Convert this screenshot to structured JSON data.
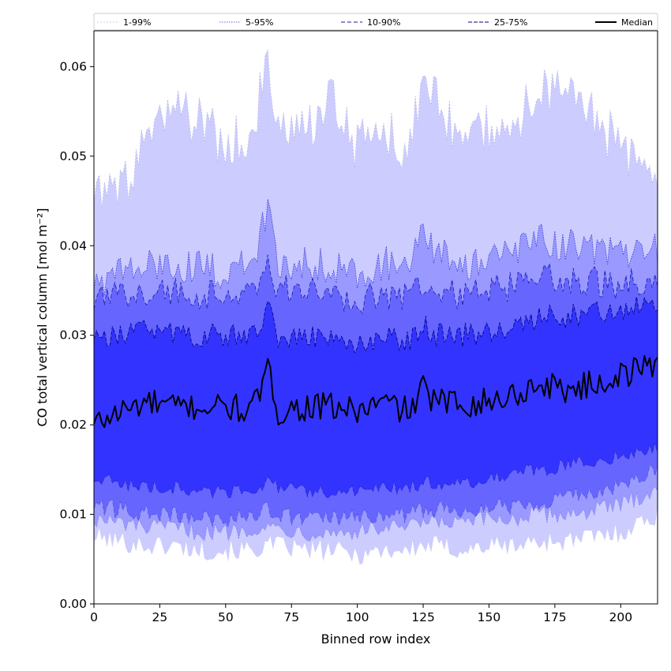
{
  "chart_data": {
    "type": "area",
    "title": "",
    "xlabel": "Binned row index",
    "ylabel": "CO total vertical column [mol m⁻²]",
    "xlim": [
      0,
      214
    ],
    "ylim": [
      0,
      0.064
    ],
    "xticks": [
      "0",
      "25",
      "50",
      "75",
      "100",
      "125",
      "150",
      "175",
      "200"
    ],
    "xtick_values": [
      0,
      25,
      50,
      75,
      100,
      125,
      150,
      175,
      200
    ],
    "yticks": [
      "0.00",
      "0.01",
      "0.02",
      "0.03",
      "0.04",
      "0.05",
      "0.06"
    ],
    "ytick_values": [
      0,
      0.01,
      0.02,
      0.03,
      0.04,
      0.05,
      0.06
    ],
    "grid": false,
    "legend_position": "top",
    "x": [
      0,
      10,
      20,
      30,
      40,
      50,
      60,
      66,
      70,
      80,
      90,
      100,
      110,
      120,
      125,
      130,
      140,
      150,
      160,
      170,
      180,
      190,
      200,
      214
    ],
    "bands": [
      {
        "name": "1-99%",
        "fill": "#ccccff",
        "line": "#b8b8e8",
        "dash": "2,2",
        "lower": [
          0.0075,
          0.007,
          0.0065,
          0.0065,
          0.006,
          0.006,
          0.006,
          0.0065,
          0.0065,
          0.006,
          0.006,
          0.0055,
          0.006,
          0.006,
          0.0065,
          0.0065,
          0.006,
          0.0065,
          0.0065,
          0.007,
          0.007,
          0.0075,
          0.008,
          0.01
        ],
        "upper": [
          0.046,
          0.046,
          0.051,
          0.055,
          0.054,
          0.051,
          0.053,
          0.06,
          0.053,
          0.052,
          0.057,
          0.051,
          0.053,
          0.051,
          0.058,
          0.056,
          0.052,
          0.053,
          0.054,
          0.058,
          0.057,
          0.054,
          0.051,
          0.049
        ]
      },
      {
        "name": "5-95%",
        "fill": "#9999ff",
        "line": "#3333cc",
        "dash": "1.5,1.5",
        "lower": [
          0.0095,
          0.009,
          0.0085,
          0.0085,
          0.008,
          0.008,
          0.0085,
          0.0085,
          0.0085,
          0.008,
          0.008,
          0.008,
          0.0085,
          0.0085,
          0.009,
          0.009,
          0.009,
          0.0095,
          0.0095,
          0.01,
          0.01,
          0.0105,
          0.011,
          0.013
        ],
        "upper": [
          0.036,
          0.037,
          0.0375,
          0.038,
          0.0375,
          0.037,
          0.038,
          0.044,
          0.038,
          0.038,
          0.038,
          0.037,
          0.038,
          0.038,
          0.041,
          0.039,
          0.038,
          0.0385,
          0.039,
          0.041,
          0.04,
          0.0395,
          0.039,
          0.0395
        ]
      },
      {
        "name": "10-90%",
        "fill": "#6666ff",
        "line": "#1a1aaa",
        "dash": "5,3",
        "lower": [
          0.011,
          0.0105,
          0.01,
          0.01,
          0.0095,
          0.0095,
          0.01,
          0.0105,
          0.01,
          0.0095,
          0.0095,
          0.0095,
          0.01,
          0.01,
          0.0105,
          0.0105,
          0.0105,
          0.011,
          0.011,
          0.0115,
          0.012,
          0.0125,
          0.013,
          0.015
        ],
        "upper": [
          0.0335,
          0.0345,
          0.035,
          0.035,
          0.0345,
          0.0345,
          0.035,
          0.038,
          0.035,
          0.035,
          0.0345,
          0.034,
          0.0345,
          0.0345,
          0.036,
          0.035,
          0.0345,
          0.035,
          0.0355,
          0.0365,
          0.036,
          0.036,
          0.0355,
          0.0365
        ]
      },
      {
        "name": "25-75%",
        "fill": "#3333ff",
        "line": "#000080",
        "dash": "5,2",
        "lower": [
          0.014,
          0.0135,
          0.013,
          0.013,
          0.0125,
          0.0125,
          0.013,
          0.0135,
          0.013,
          0.0125,
          0.0125,
          0.0125,
          0.013,
          0.013,
          0.0135,
          0.0135,
          0.0135,
          0.014,
          0.0145,
          0.015,
          0.0155,
          0.016,
          0.0165,
          0.0175
        ],
        "upper": [
          0.03,
          0.03,
          0.0305,
          0.0305,
          0.03,
          0.03,
          0.03,
          0.033,
          0.03,
          0.03,
          0.03,
          0.029,
          0.0295,
          0.0295,
          0.031,
          0.03,
          0.03,
          0.0305,
          0.031,
          0.032,
          0.032,
          0.0325,
          0.0325,
          0.0335
        ]
      }
    ],
    "series": [
      {
        "name": "Median",
        "color": "#000000",
        "values": [
          0.02,
          0.0215,
          0.0225,
          0.022,
          0.022,
          0.022,
          0.0215,
          0.026,
          0.0215,
          0.022,
          0.022,
          0.0215,
          0.0225,
          0.0215,
          0.024,
          0.0225,
          0.0225,
          0.0225,
          0.0235,
          0.0245,
          0.024,
          0.0245,
          0.0255,
          0.027
        ]
      }
    ],
    "legend": [
      "1-99%",
      "5-95%",
      "10-90%",
      "25-75%",
      "Median"
    ]
  }
}
